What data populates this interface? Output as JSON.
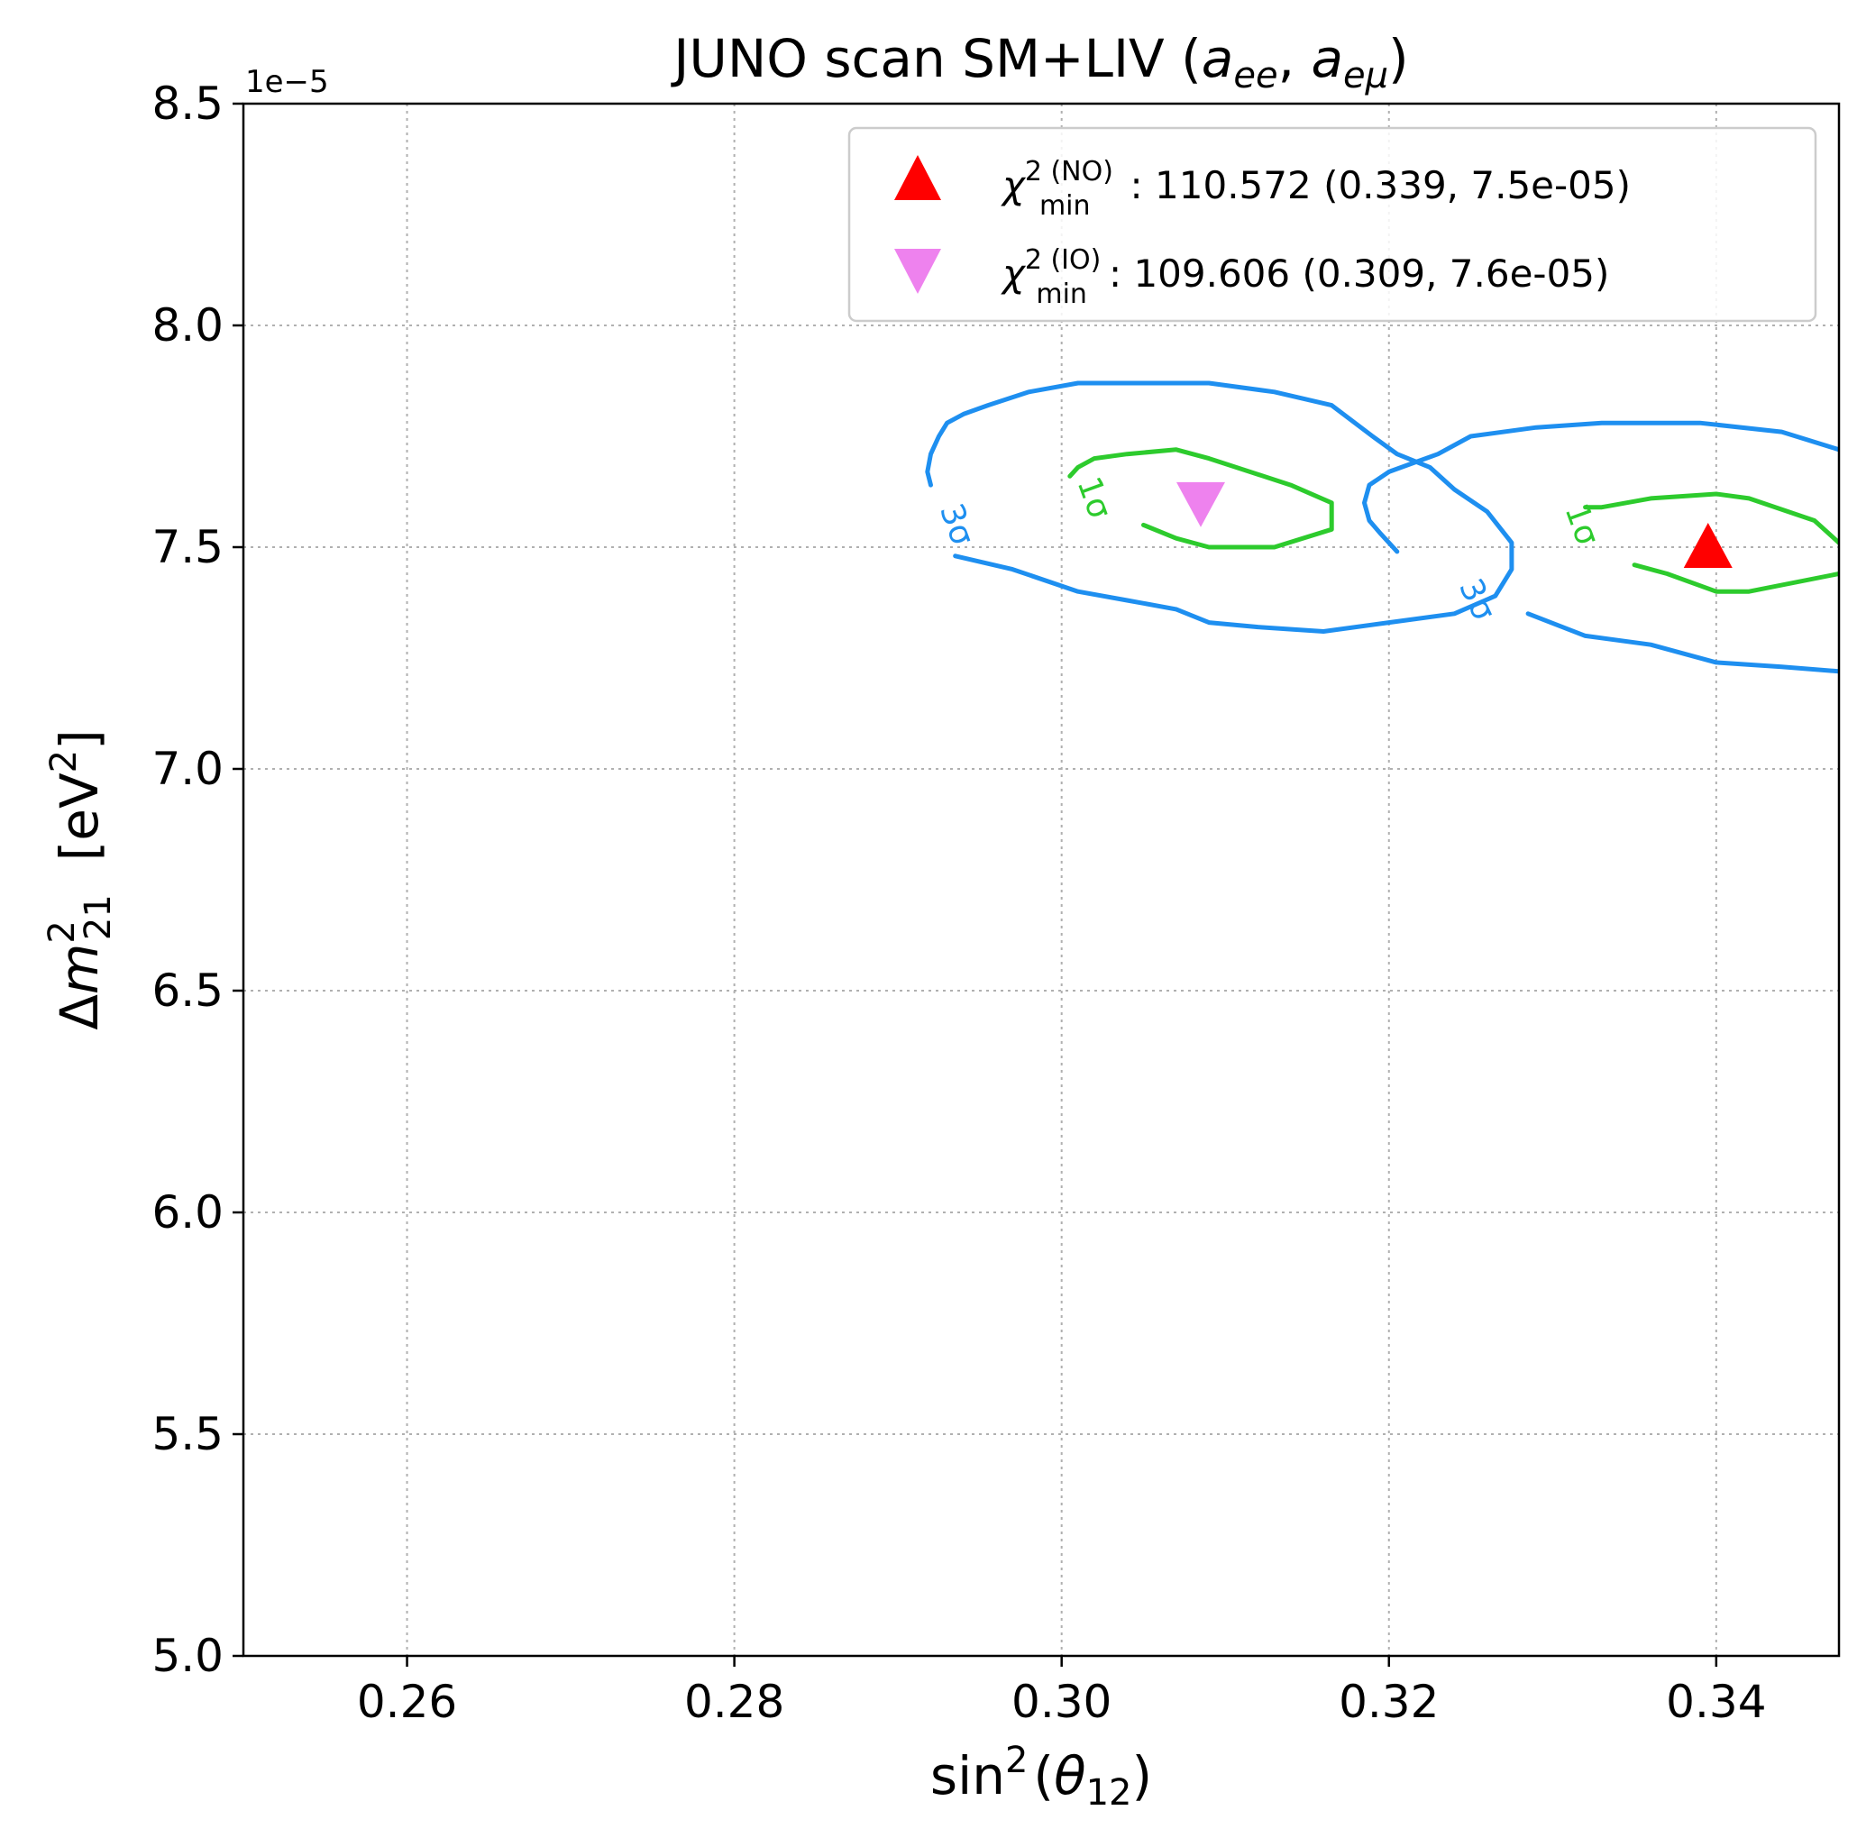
{
  "chart_data": {
    "type": "contour",
    "title": "JUNO scan SM+LIV (a_ee, a_eμ)",
    "title_parts": {
      "prefix": "JUNO scan SM+LIV (",
      "a": "a",
      "sub1": "ee",
      "sep": ", ",
      "sub2": "eμ",
      "suffix": ")"
    },
    "xlabel": "sin²(θ₁₂)",
    "xlabel_parts": {
      "func": "sin",
      "sup": "2",
      "open": "(",
      "theta": "θ",
      "sub": "12",
      "close": ")"
    },
    "ylabel": "Δm²₂₁ [eV²]",
    "ylabel_parts": {
      "delta": "Δ",
      "m": "m",
      "sup": "2",
      "sub": "21",
      "unit_open": "  [eV",
      "unit_sup": "2",
      "unit_close": "]"
    },
    "y_offset_label": "1e−5",
    "xlim": [
      0.25,
      0.3475
    ],
    "ylim": [
      5.0,
      8.5
    ],
    "y_scale_factor": 1e-05,
    "x_ticks": [
      0.26,
      0.28,
      0.3,
      0.32,
      0.34
    ],
    "x_tick_labels": [
      "0.26",
      "0.28",
      "0.30",
      "0.32",
      "0.34"
    ],
    "y_ticks": [
      5.0,
      5.5,
      6.0,
      6.5,
      7.0,
      7.5,
      8.0,
      8.5
    ],
    "y_tick_labels": [
      "5.0",
      "5.5",
      "6.0",
      "6.5",
      "7.0",
      "7.5",
      "8.0",
      "8.5"
    ],
    "grid": true,
    "legend_position": "top-right",
    "contours": [
      {
        "name": "IO 3σ",
        "label": "3σ",
        "level": "3σ",
        "color": "#1e8ff0",
        "label_pos": [
          0.2935,
          7.55
        ],
        "label_angle": 70,
        "points": [
          [
            0.2935,
            7.48
          ],
          [
            0.297,
            7.45
          ],
          [
            0.301,
            7.4
          ],
          [
            0.304,
            7.38
          ],
          [
            0.307,
            7.36
          ],
          [
            0.309,
            7.33
          ],
          [
            0.312,
            7.32
          ],
          [
            0.316,
            7.31
          ],
          [
            0.32,
            7.33
          ],
          [
            0.324,
            7.35
          ],
          [
            0.3265,
            7.39
          ],
          [
            0.3275,
            7.45
          ],
          [
            0.3275,
            7.51
          ],
          [
            0.326,
            7.58
          ],
          [
            0.324,
            7.63
          ],
          [
            0.3225,
            7.68
          ],
          [
            0.3205,
            7.71
          ],
          [
            0.319,
            7.75
          ],
          [
            0.3165,
            7.82
          ],
          [
            0.313,
            7.85
          ],
          [
            0.309,
            7.87
          ],
          [
            0.304,
            7.87
          ],
          [
            0.301,
            7.87
          ],
          [
            0.298,
            7.85
          ],
          [
            0.2955,
            7.82
          ],
          [
            0.294,
            7.8
          ],
          [
            0.293,
            7.78
          ],
          [
            0.2925,
            7.75
          ],
          [
            0.292,
            7.71
          ],
          [
            0.2918,
            7.67
          ],
          [
            0.292,
            7.64
          ]
        ]
      },
      {
        "name": "IO 1σ",
        "label": "1σ",
        "level": "1σ",
        "color": "#2dcb2d",
        "label_pos": [
          0.3019,
          7.61
        ],
        "label_angle": 70,
        "points": [
          [
            0.305,
            7.55
          ],
          [
            0.307,
            7.52
          ],
          [
            0.309,
            7.5
          ],
          [
            0.313,
            7.5
          ],
          [
            0.3165,
            7.54
          ],
          [
            0.3165,
            7.6
          ],
          [
            0.314,
            7.64
          ],
          [
            0.3115,
            7.67
          ],
          [
            0.309,
            7.7
          ],
          [
            0.307,
            7.72
          ],
          [
            0.304,
            7.71
          ],
          [
            0.302,
            7.7
          ],
          [
            0.301,
            7.68
          ],
          [
            0.3005,
            7.66
          ]
        ]
      },
      {
        "name": "NO 3σ",
        "label": "3σ",
        "level": "3σ",
        "color": "#1e8ff0",
        "label_pos": [
          0.3253,
          7.38
        ],
        "label_angle": 65,
        "points": [
          [
            0.3285,
            7.35
          ],
          [
            0.332,
            7.3
          ],
          [
            0.336,
            7.28
          ],
          [
            0.34,
            7.24
          ],
          [
            0.344,
            7.23
          ],
          [
            0.3475,
            7.22
          ],
          null,
          [
            0.3475,
            7.72
          ],
          [
            0.344,
            7.76
          ],
          [
            0.339,
            7.78
          ],
          [
            0.333,
            7.78
          ],
          [
            0.329,
            7.77
          ],
          [
            0.325,
            7.75
          ],
          [
            0.323,
            7.71
          ],
          [
            0.3215,
            7.69
          ],
          [
            0.32,
            7.67
          ],
          [
            0.3188,
            7.64
          ],
          [
            0.3185,
            7.6
          ],
          [
            0.3188,
            7.56
          ],
          [
            0.3195,
            7.53
          ],
          [
            0.3205,
            7.49
          ]
        ]
      },
      {
        "name": "NO 1σ",
        "label": "1σ",
        "level": "1σ",
        "color": "#2dcb2d",
        "label_pos": [
          0.3317,
          7.55
        ],
        "label_angle": 70,
        "points": [
          [
            0.335,
            7.46
          ],
          [
            0.337,
            7.44
          ],
          [
            0.34,
            7.4
          ],
          [
            0.342,
            7.4
          ],
          [
            0.3475,
            7.44
          ],
          null,
          [
            0.3475,
            7.51
          ],
          [
            0.346,
            7.56
          ],
          [
            0.342,
            7.61
          ],
          [
            0.34,
            7.62
          ],
          [
            0.336,
            7.61
          ],
          [
            0.333,
            7.59
          ],
          [
            0.332,
            7.59
          ]
        ]
      }
    ],
    "markers": [
      {
        "name": "NO best fit",
        "shape": "triangle-up",
        "color": "#ff0000",
        "x": 0.3395,
        "y": 7.5
      },
      {
        "name": "IO best fit",
        "shape": "triangle-down",
        "color": "#ee82ee",
        "x": 0.3085,
        "y": 7.6
      }
    ],
    "legend": [
      {
        "marker": "triangle-up",
        "color": "#ff0000",
        "chi": "χ",
        "sup": "2 (NO)",
        "sub": "min",
        "text": ": 110.572 (0.339, 7.5e-05)"
      },
      {
        "marker": "triangle-down",
        "color": "#ee82ee",
        "chi": "χ",
        "sup": "2 (IO)",
        "sub": "min",
        "text": ": 109.606 (0.309, 7.6e-05)"
      }
    ]
  }
}
